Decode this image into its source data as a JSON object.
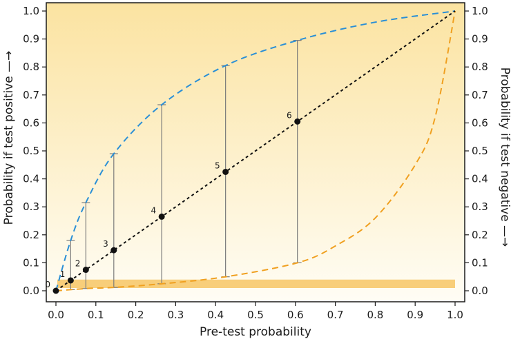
{
  "chart_data": {
    "type": "line",
    "xlabel": "Pre-test probability",
    "ylabel_left": "Probability if test positive —→",
    "ylabel_right": "Probability if test negative —→",
    "xlim": [
      0,
      1
    ],
    "ylim": [
      0,
      1
    ],
    "x_ticks": [
      "0.0",
      "0.1",
      "0.2",
      "0.3",
      "0.4",
      "0.5",
      "0.6",
      "0.7",
      "0.8",
      "0.9",
      "1.0"
    ],
    "y_ticks": [
      "0.0",
      "0.1",
      "0.2",
      "0.3",
      "0.4",
      "0.5",
      "0.6",
      "0.7",
      "0.8",
      "0.9",
      "1.0"
    ],
    "curves": {
      "positive": {
        "color": "#2a8fd6",
        "style": "dashed"
      },
      "negative": {
        "color": "#f0a020",
        "style": "dashed"
      },
      "identity": {
        "color": "#111111",
        "style": "dotted"
      }
    },
    "background": {
      "top_color": "#fbe3a1",
      "bottom_color": "#fffdf5"
    },
    "reference_band": {
      "y_from": 0.0,
      "y_to": 0.04,
      "x_from": 0.0,
      "x_to": 1.0,
      "color": "#f8ce7a"
    },
    "points": [
      {
        "label": "0",
        "x": 0.0,
        "y": 0.0,
        "y_pos": 0.0,
        "y_neg": 0.0
      },
      {
        "label": "1",
        "x": 0.037,
        "y": 0.037,
        "y_pos": 0.18,
        "y_neg": 0.004
      },
      {
        "label": "2",
        "x": 0.075,
        "y": 0.075,
        "y_pos": 0.315,
        "y_neg": 0.008
      },
      {
        "label": "3",
        "x": 0.145,
        "y": 0.145,
        "y_pos": 0.49,
        "y_neg": 0.012
      },
      {
        "label": "4",
        "x": 0.265,
        "y": 0.265,
        "y_pos": 0.665,
        "y_neg": 0.025
      },
      {
        "label": "5",
        "x": 0.425,
        "y": 0.425,
        "y_pos": 0.805,
        "y_neg": 0.05
      },
      {
        "label": "6",
        "x": 0.605,
        "y": 0.605,
        "y_pos": 0.895,
        "y_neg": 0.1
      }
    ],
    "positive_curve": [
      [
        0,
        0
      ],
      [
        0.037,
        0.18
      ],
      [
        0.075,
        0.315
      ],
      [
        0.145,
        0.49
      ],
      [
        0.265,
        0.665
      ],
      [
        0.425,
        0.805
      ],
      [
        0.605,
        0.895
      ],
      [
        0.8,
        0.96
      ],
      [
        1.0,
        1.0
      ]
    ],
    "negative_curve": [
      [
        0,
        0
      ],
      [
        0.075,
        0.008
      ],
      [
        0.145,
        0.012
      ],
      [
        0.265,
        0.025
      ],
      [
        0.425,
        0.05
      ],
      [
        0.605,
        0.1
      ],
      [
        0.7,
        0.16
      ],
      [
        0.8,
        0.26
      ],
      [
        0.9,
        0.45
      ],
      [
        0.95,
        0.62
      ],
      [
        1.0,
        1.0
      ]
    ]
  }
}
